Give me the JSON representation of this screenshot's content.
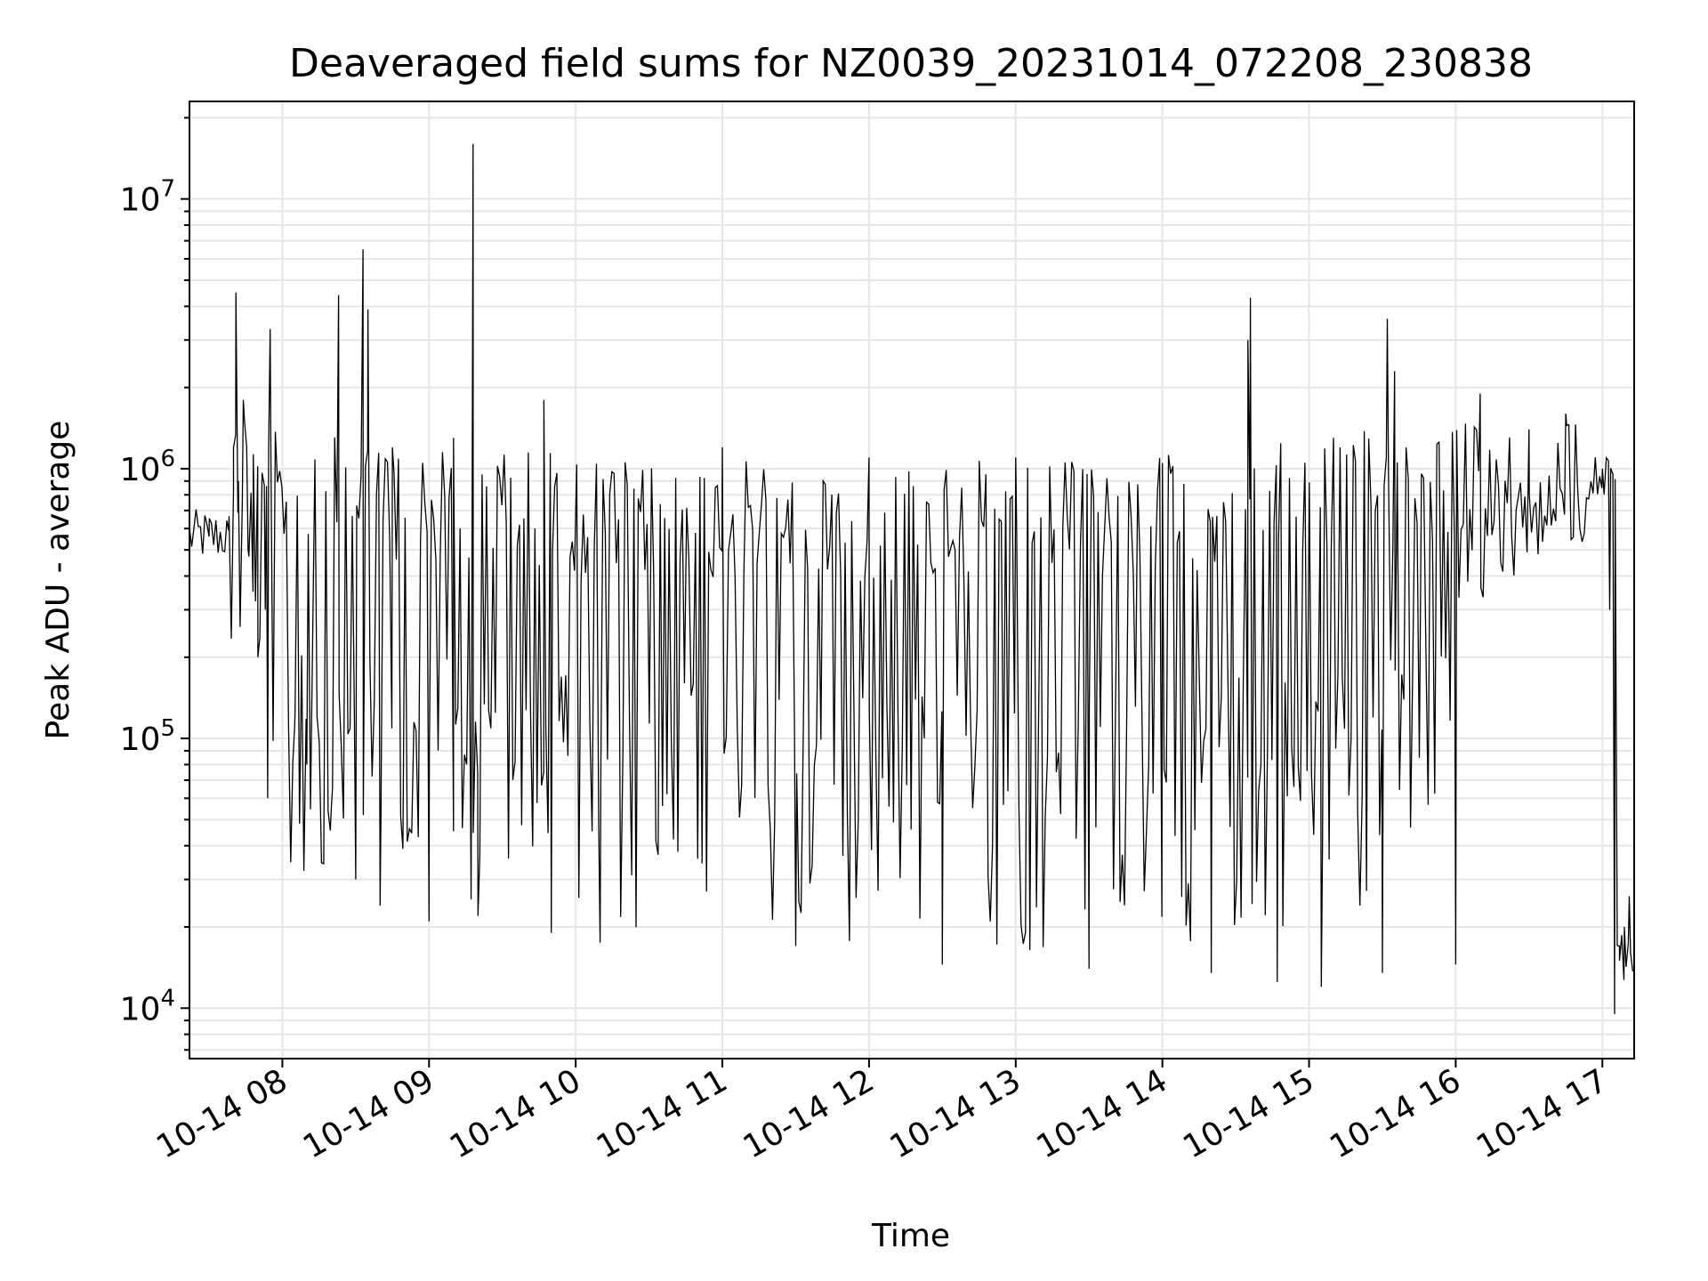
{
  "chart_data": {
    "type": "line",
    "title": "Deaveraged field sums for NZ0039_20231014_072208_230838",
    "xlabel": "Time",
    "ylabel": "Peak ADU - average",
    "yscale": "log",
    "ylim": [
      6500,
      23000000
    ],
    "xlim": [
      "2023-10-14 07:22",
      "2023-10-14 17:13"
    ],
    "grid": true,
    "legend": "none",
    "line_color": "#000000",
    "x_ticks": [
      {
        "time": "2023-10-14 08:00",
        "label": "10-14 08"
      },
      {
        "time": "2023-10-14 09:00",
        "label": "10-14 09"
      },
      {
        "time": "2023-10-14 10:00",
        "label": "10-14 10"
      },
      {
        "time": "2023-10-14 11:00",
        "label": "10-14 11"
      },
      {
        "time": "2023-10-14 12:00",
        "label": "10-14 12"
      },
      {
        "time": "2023-10-14 13:00",
        "label": "10-14 13"
      },
      {
        "time": "2023-10-14 14:00",
        "label": "10-14 14"
      },
      {
        "time": "2023-10-14 15:00",
        "label": "10-14 15"
      },
      {
        "time": "2023-10-14 16:00",
        "label": "10-14 16"
      },
      {
        "time": "2023-10-14 17:00",
        "label": "10-14 17"
      }
    ],
    "y_ticks": [
      {
        "value": 10000,
        "base": "10",
        "exp": "4"
      },
      {
        "value": 100000,
        "base": "10",
        "exp": "5"
      },
      {
        "value": 1000000,
        "base": "10",
        "exp": "6"
      },
      {
        "value": 10000000,
        "base": "10",
        "exp": "7"
      }
    ],
    "series": [
      {
        "points": [
          [
            "2023-10-14 07:22",
            600000
          ],
          [
            "2023-10-14 07:30",
            560000
          ],
          [
            "2023-10-14 07:38",
            590000
          ],
          [
            "2023-10-14 07:40",
            1200000
          ],
          [
            "2023-10-14 07:41",
            4500000
          ],
          [
            "2023-10-14 07:42",
            900000
          ],
          [
            "2023-10-14 07:44",
            1800000
          ],
          [
            "2023-10-14 07:46",
            500000
          ],
          [
            "2023-10-14 07:48",
            350000
          ],
          [
            "2023-10-14 07:50",
            200000
          ],
          [
            "2023-10-14 07:53",
            300000
          ],
          [
            "2023-10-14 07:54",
            60000
          ],
          [
            "2023-10-14 07:55",
            3300000
          ],
          [
            "2023-10-14 08:05",
            110000
          ],
          [
            "2023-10-14 08:10",
            80000
          ],
          [
            "2023-10-14 08:20",
            55000
          ],
          [
            "2023-10-14 08:23",
            4400000
          ],
          [
            "2023-10-14 08:30",
            30000
          ],
          [
            "2023-10-14 08:33",
            6500000
          ],
          [
            "2023-10-14 08:35",
            3900000
          ],
          [
            "2023-10-14 08:40",
            24000
          ],
          [
            "2023-10-14 08:45",
            1200000
          ],
          [
            "2023-10-14 09:00",
            21000
          ],
          [
            "2023-10-14 09:10",
            1300000
          ],
          [
            "2023-10-14 09:18",
            16000000
          ],
          [
            "2023-10-14 09:20",
            22000
          ],
          [
            "2023-10-14 09:47",
            1800000
          ],
          [
            "2023-10-14 09:50",
            19000
          ],
          [
            "2023-10-14 10:10",
            17500
          ],
          [
            "2023-10-14 11:00",
            1200000
          ],
          [
            "2023-10-14 11:30",
            17000
          ],
          [
            "2023-10-14 12:00",
            1100000
          ],
          [
            "2023-10-14 12:30",
            14500
          ],
          [
            "2023-10-14 13:00",
            1100000
          ],
          [
            "2023-10-14 13:30",
            14000
          ],
          [
            "2023-10-14 14:00",
            1050000
          ],
          [
            "2023-10-14 14:20",
            13500
          ],
          [
            "2023-10-14 14:35",
            3000000
          ],
          [
            "2023-10-14 14:36",
            4300000
          ],
          [
            "2023-10-14 14:47",
            12500
          ],
          [
            "2023-10-14 15:05",
            12000
          ],
          [
            "2023-10-14 15:30",
            13500
          ],
          [
            "2023-10-14 15:32",
            3600000
          ],
          [
            "2023-10-14 15:35",
            2300000
          ],
          [
            "2023-10-14 16:00",
            14500
          ],
          [
            "2023-10-14 16:10",
            1900000
          ],
          [
            "2023-10-14 16:30",
            1400000
          ],
          [
            "2023-10-14 16:45",
            1600000
          ],
          [
            "2023-10-14 17:00",
            1000000
          ],
          [
            "2023-10-14 17:03",
            300000
          ],
          [
            "2023-10-14 17:05",
            9500
          ],
          [
            "2023-10-14 17:07",
            15000
          ],
          [
            "2023-10-14 17:09",
            20000
          ],
          [
            "2023-10-14 17:11",
            26000
          ],
          [
            "2023-10-14 17:13",
            23000
          ]
        ]
      }
    ]
  }
}
